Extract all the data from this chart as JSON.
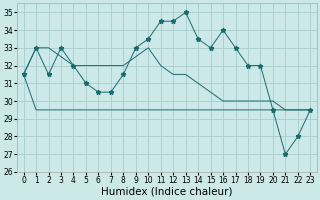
{
  "xlabel": "Humidex (Indice chaleur)",
  "bg_color": "#cce8e8",
  "grid_color": "#aacccc",
  "line_color": "#1a6b6b",
  "x_values": [
    0,
    1,
    2,
    3,
    4,
    5,
    6,
    7,
    8,
    9,
    10,
    11,
    12,
    13,
    14,
    15,
    16,
    17,
    18,
    19,
    20,
    21,
    22,
    23
  ],
  "main_values": [
    31.5,
    33.0,
    31.5,
    33.0,
    32.0,
    31.0,
    30.5,
    30.5,
    31.5,
    33.0,
    33.5,
    34.5,
    34.5,
    35.0,
    33.5,
    33.0,
    34.0,
    33.0,
    32.0,
    32.0,
    29.5,
    27.0,
    28.0,
    29.5
  ],
  "upper_env": [
    31.5,
    33.0,
    33.0,
    32.5,
    32.0,
    32.0,
    32.0,
    32.0,
    32.0,
    32.5,
    33.0,
    32.0,
    31.5,
    31.5,
    31.0,
    30.5,
    30.0,
    30.0,
    30.0,
    30.0,
    30.0,
    29.5,
    29.5,
    29.5
  ],
  "lower_env": [
    31.5,
    29.5,
    29.5,
    29.5,
    29.5,
    29.5,
    29.5,
    29.5,
    29.5,
    29.5,
    29.5,
    29.5,
    29.5,
    29.5,
    29.5,
    29.5,
    29.5,
    29.5,
    29.5,
    29.5,
    29.5,
    29.5,
    29.5,
    29.5
  ],
  "ylim": [
    26,
    35.5
  ],
  "xlim": [
    -0.5,
    23.5
  ],
  "yticks": [
    26,
    27,
    28,
    29,
    30,
    31,
    32,
    33,
    34,
    35
  ],
  "xticks": [
    0,
    1,
    2,
    3,
    4,
    5,
    6,
    7,
    8,
    9,
    10,
    11,
    12,
    13,
    14,
    15,
    16,
    17,
    18,
    19,
    20,
    21,
    22,
    23
  ],
  "tick_fontsize": 5.5,
  "xlabel_fontsize": 7.5,
  "linewidth": 0.7,
  "markersize": 3.5
}
